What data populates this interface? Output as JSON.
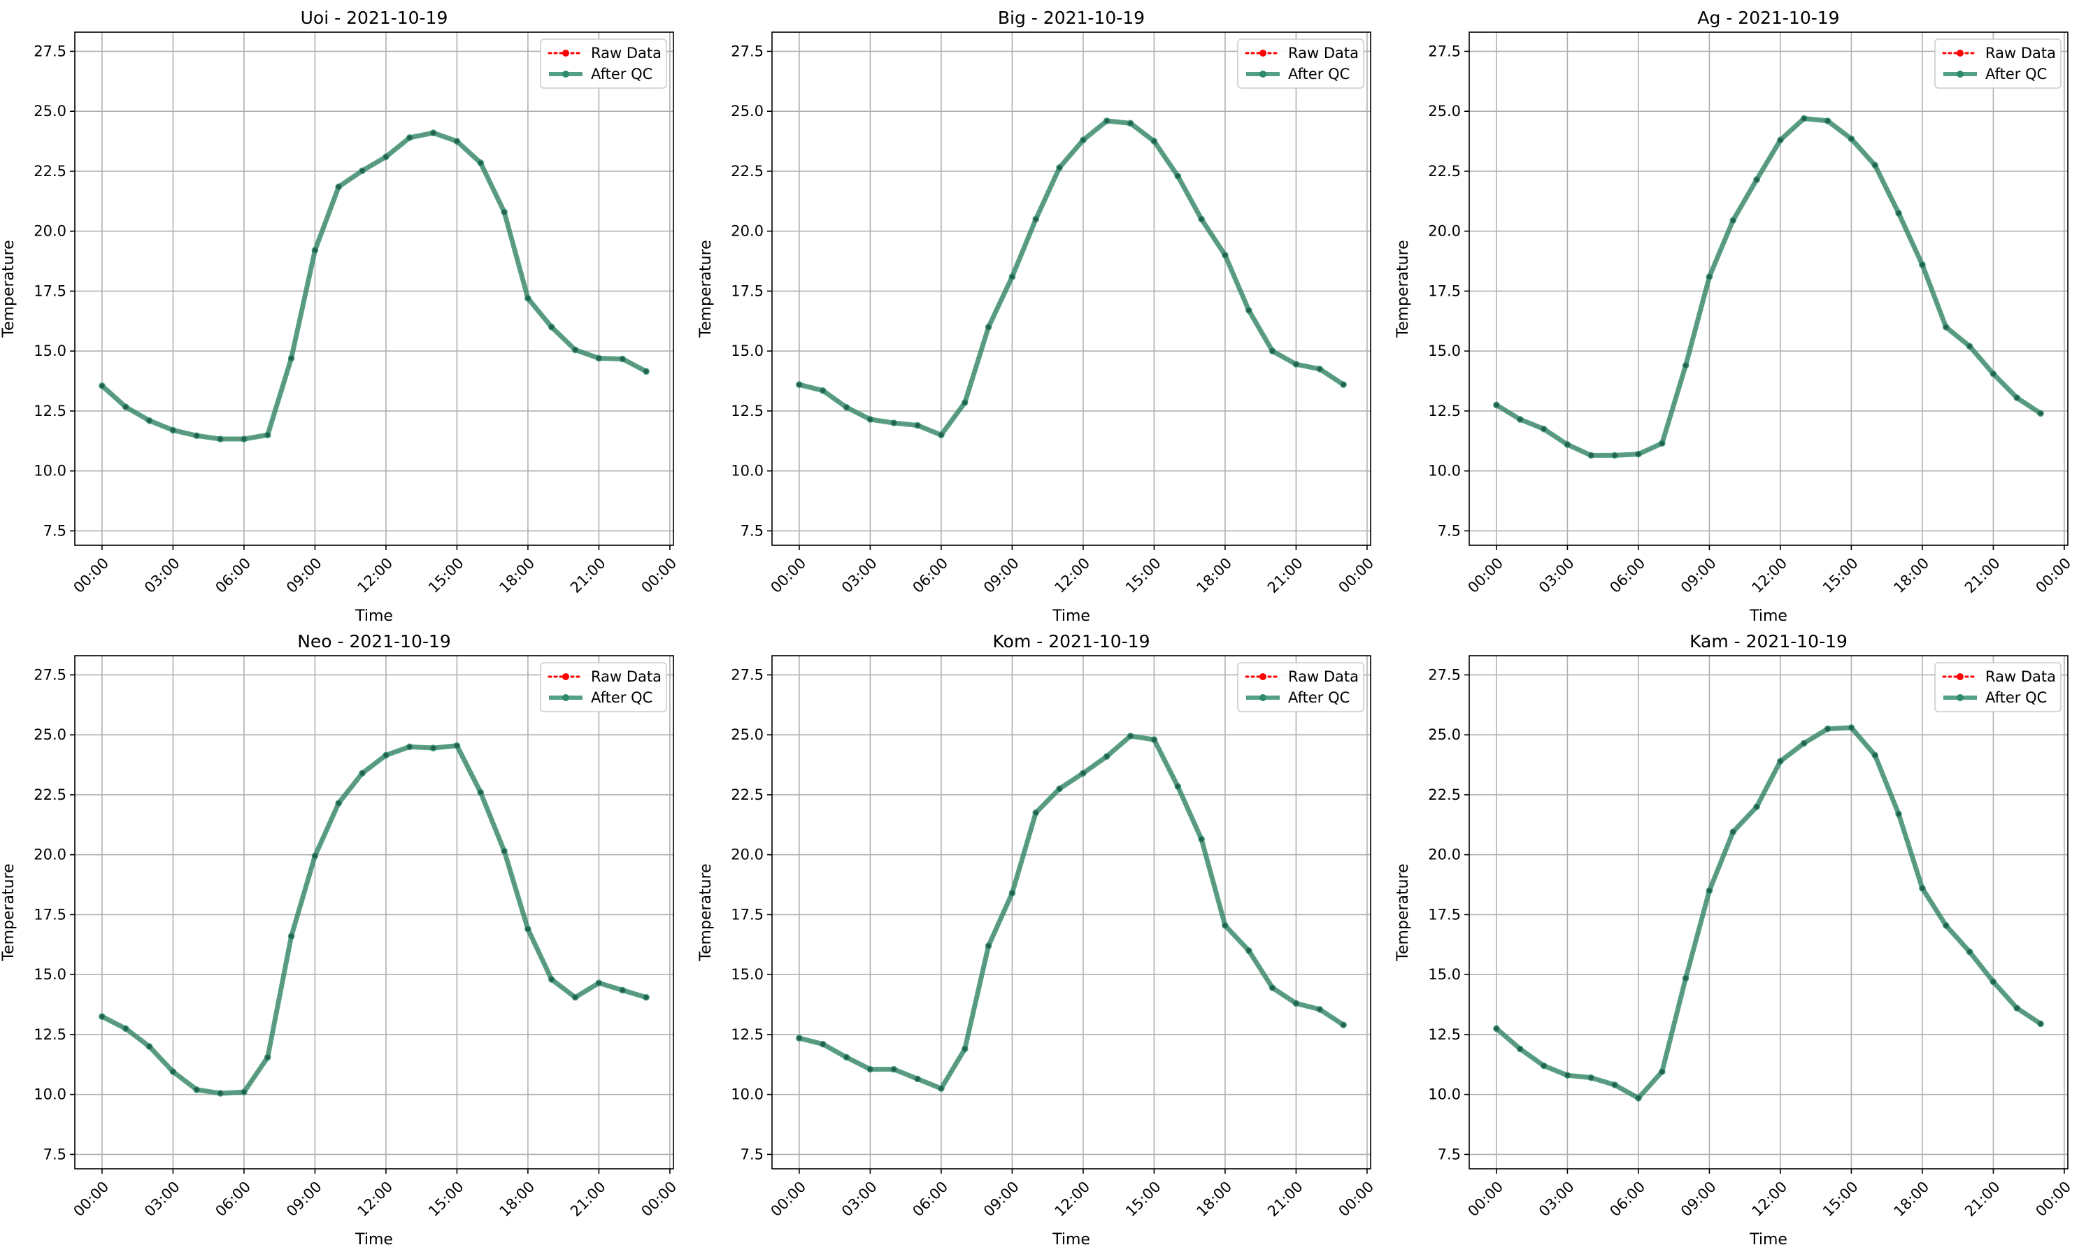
{
  "chart_data": [
    {
      "type": "line",
      "title": "Uoi - 2021-10-19",
      "xlabel": "Time",
      "ylabel": "Temperature",
      "xlim": [
        -1.15,
        24.15
      ],
      "ylim": [
        6.9,
        28.3
      ],
      "xticks": [
        0,
        3,
        6,
        9,
        12,
        15,
        18,
        21,
        24
      ],
      "xtick_labels": [
        "00:00",
        "03:00",
        "06:00",
        "09:00",
        "12:00",
        "15:00",
        "18:00",
        "21:00",
        "00:00"
      ],
      "yticks": [
        7.5,
        10.0,
        12.5,
        15.0,
        17.5,
        20.0,
        22.5,
        25.0,
        27.5
      ],
      "ytick_labels": [
        "7.5",
        "10.0",
        "12.5",
        "15.0",
        "17.5",
        "20.0",
        "22.5",
        "25.0",
        "27.5"
      ],
      "grid": true,
      "legend_position": "top-right",
      "x": [
        0,
        1,
        2,
        3,
        4,
        5,
        6,
        7,
        8,
        9,
        10,
        11,
        12,
        13,
        14,
        15,
        16,
        17,
        18,
        19,
        20,
        21,
        22,
        23
      ],
      "series": [
        {
          "name": "Raw Data",
          "color": "#ff0000",
          "values": [
            13.55,
            12.67,
            12.1,
            11.7,
            11.47,
            11.33,
            11.33,
            11.5,
            14.7,
            19.2,
            21.85,
            22.52,
            23.1,
            23.9,
            24.1,
            23.75,
            22.85,
            20.8,
            17.2,
            16.0,
            15.05,
            14.7,
            14.67,
            14.15
          ]
        },
        {
          "name": "After QC",
          "color": "#2e8b6a",
          "values": [
            13.55,
            12.67,
            12.1,
            11.7,
            11.47,
            11.33,
            11.33,
            11.5,
            14.7,
            19.2,
            21.85,
            22.52,
            23.1,
            23.9,
            24.1,
            23.75,
            22.85,
            20.8,
            17.2,
            16.0,
            15.05,
            14.7,
            14.67,
            14.15
          ]
        }
      ]
    },
    {
      "type": "line",
      "title": "Big - 2021-10-19",
      "xlabel": "Time",
      "ylabel": "Temperature",
      "xlim": [
        -1.15,
        24.15
      ],
      "ylim": [
        6.9,
        28.3
      ],
      "xticks": [
        0,
        3,
        6,
        9,
        12,
        15,
        18,
        21,
        24
      ],
      "xtick_labels": [
        "00:00",
        "03:00",
        "06:00",
        "09:00",
        "12:00",
        "15:00",
        "18:00",
        "21:00",
        "00:00"
      ],
      "yticks": [
        7.5,
        10.0,
        12.5,
        15.0,
        17.5,
        20.0,
        22.5,
        25.0,
        27.5
      ],
      "ytick_labels": [
        "7.5",
        "10.0",
        "12.5",
        "15.0",
        "17.5",
        "20.0",
        "22.5",
        "25.0",
        "27.5"
      ],
      "grid": true,
      "legend_position": "top-right",
      "x": [
        0,
        1,
        2,
        3,
        4,
        5,
        6,
        7,
        8,
        9,
        10,
        11,
        12,
        13,
        14,
        15,
        16,
        17,
        18,
        19,
        20,
        21,
        22,
        23
      ],
      "series": [
        {
          "name": "Raw Data",
          "color": "#ff0000",
          "values": [
            13.6,
            13.35,
            12.65,
            12.15,
            12.0,
            11.9,
            11.5,
            12.85,
            16.0,
            18.1,
            20.5,
            22.65,
            23.8,
            24.6,
            24.5,
            23.75,
            22.3,
            20.5,
            19.0,
            16.7,
            15.0,
            14.45,
            14.25,
            13.6
          ]
        },
        {
          "name": "After QC",
          "color": "#2e8b6a",
          "values": [
            13.6,
            13.35,
            12.65,
            12.15,
            12.0,
            11.9,
            11.5,
            12.85,
            16.0,
            18.1,
            20.5,
            22.65,
            23.8,
            24.6,
            24.5,
            23.75,
            22.3,
            20.5,
            19.0,
            16.7,
            15.0,
            14.45,
            14.25,
            13.6
          ]
        }
      ]
    },
    {
      "type": "line",
      "title": "Ag - 2021-10-19",
      "xlabel": "Time",
      "ylabel": "Temperature",
      "xlim": [
        -1.15,
        24.15
      ],
      "ylim": [
        6.9,
        28.3
      ],
      "xticks": [
        0,
        3,
        6,
        9,
        12,
        15,
        18,
        21,
        24
      ],
      "xtick_labels": [
        "00:00",
        "03:00",
        "06:00",
        "09:00",
        "12:00",
        "15:00",
        "18:00",
        "21:00",
        "00:00"
      ],
      "yticks": [
        7.5,
        10.0,
        12.5,
        15.0,
        17.5,
        20.0,
        22.5,
        25.0,
        27.5
      ],
      "ytick_labels": [
        "7.5",
        "10.0",
        "12.5",
        "15.0",
        "17.5",
        "20.0",
        "22.5",
        "25.0",
        "27.5"
      ],
      "grid": true,
      "legend_position": "top-right",
      "x": [
        0,
        1,
        2,
        3,
        4,
        5,
        6,
        7,
        8,
        9,
        10,
        11,
        12,
        13,
        14,
        15,
        16,
        17,
        18,
        19,
        20,
        21,
        22,
        23
      ],
      "series": [
        {
          "name": "Raw Data",
          "color": "#ff0000",
          "values": [
            12.75,
            12.15,
            11.75,
            11.1,
            10.65,
            10.65,
            10.7,
            11.15,
            14.4,
            18.1,
            20.45,
            22.15,
            23.8,
            24.7,
            24.6,
            23.85,
            22.75,
            20.75,
            18.6,
            16.0,
            15.2,
            14.05,
            13.05,
            12.4
          ]
        },
        {
          "name": "After QC",
          "color": "#2e8b6a",
          "values": [
            12.75,
            12.15,
            11.75,
            11.1,
            10.65,
            10.65,
            10.7,
            11.15,
            14.4,
            18.1,
            20.45,
            22.15,
            23.8,
            24.7,
            24.6,
            23.85,
            22.75,
            20.75,
            18.6,
            16.0,
            15.2,
            14.05,
            13.05,
            12.4
          ]
        }
      ]
    },
    {
      "type": "line",
      "title": "Neo - 2021-10-19",
      "xlabel": "Time",
      "ylabel": "Temperature",
      "xlim": [
        -1.15,
        24.15
      ],
      "ylim": [
        6.9,
        28.3
      ],
      "xticks": [
        0,
        3,
        6,
        9,
        12,
        15,
        18,
        21,
        24
      ],
      "xtick_labels": [
        "00:00",
        "03:00",
        "06:00",
        "09:00",
        "12:00",
        "15:00",
        "18:00",
        "21:00",
        "00:00"
      ],
      "yticks": [
        7.5,
        10.0,
        12.5,
        15.0,
        17.5,
        20.0,
        22.5,
        25.0,
        27.5
      ],
      "ytick_labels": [
        "7.5",
        "10.0",
        "12.5",
        "15.0",
        "17.5",
        "20.0",
        "22.5",
        "25.0",
        "27.5"
      ],
      "grid": true,
      "legend_position": "top-right",
      "x": [
        0,
        1,
        2,
        3,
        4,
        5,
        6,
        7,
        8,
        9,
        10,
        11,
        12,
        13,
        14,
        15,
        16,
        17,
        18,
        19,
        20,
        21,
        22,
        23
      ],
      "series": [
        {
          "name": "Raw Data",
          "color": "#ff0000",
          "values": [
            13.25,
            12.75,
            12.0,
            10.95,
            10.2,
            10.05,
            10.1,
            11.55,
            16.6,
            19.95,
            22.15,
            23.4,
            24.15,
            24.5,
            24.45,
            24.55,
            22.6,
            20.15,
            16.9,
            14.8,
            14.05,
            14.65,
            14.35,
            14.05
          ]
        },
        {
          "name": "After QC",
          "color": "#2e8b6a",
          "values": [
            13.25,
            12.75,
            12.0,
            10.95,
            10.2,
            10.05,
            10.1,
            11.55,
            16.6,
            19.95,
            22.15,
            23.4,
            24.15,
            24.5,
            24.45,
            24.55,
            22.6,
            20.15,
            16.9,
            14.8,
            14.05,
            14.65,
            14.35,
            14.05
          ]
        }
      ]
    },
    {
      "type": "line",
      "title": "Kom - 2021-10-19",
      "xlabel": "Time",
      "ylabel": "Temperature",
      "xlim": [
        -1.15,
        24.15
      ],
      "ylim": [
        6.9,
        28.3
      ],
      "xticks": [
        0,
        3,
        6,
        9,
        12,
        15,
        18,
        21,
        24
      ],
      "xtick_labels": [
        "00:00",
        "03:00",
        "06:00",
        "09:00",
        "12:00",
        "15:00",
        "18:00",
        "21:00",
        "00:00"
      ],
      "yticks": [
        7.5,
        10.0,
        12.5,
        15.0,
        17.5,
        20.0,
        22.5,
        25.0,
        27.5
      ],
      "ytick_labels": [
        "7.5",
        "10.0",
        "12.5",
        "15.0",
        "17.5",
        "20.0",
        "22.5",
        "25.0",
        "27.5"
      ],
      "grid": true,
      "legend_position": "top-right",
      "x": [
        0,
        1,
        2,
        3,
        4,
        5,
        6,
        7,
        8,
        9,
        10,
        11,
        12,
        13,
        14,
        15,
        16,
        17,
        18,
        19,
        20,
        21,
        22,
        23
      ],
      "series": [
        {
          "name": "Raw Data",
          "color": "#ff0000",
          "values": [
            12.35,
            12.1,
            11.55,
            11.05,
            11.05,
            10.65,
            10.25,
            11.9,
            16.2,
            18.4,
            21.75,
            22.75,
            23.4,
            24.1,
            24.95,
            24.8,
            22.85,
            20.65,
            17.05,
            16.0,
            14.45,
            13.8,
            13.55,
            12.9
          ]
        },
        {
          "name": "After QC",
          "color": "#2e8b6a",
          "values": [
            12.35,
            12.1,
            11.55,
            11.05,
            11.05,
            10.65,
            10.25,
            11.9,
            16.2,
            18.4,
            21.75,
            22.75,
            23.4,
            24.1,
            24.95,
            24.8,
            22.85,
            20.65,
            17.05,
            16.0,
            14.45,
            13.8,
            13.55,
            12.9
          ]
        }
      ]
    },
    {
      "type": "line",
      "title": "Kam - 2021-10-19",
      "xlabel": "Time",
      "ylabel": "Temperature",
      "xlim": [
        -1.15,
        24.15
      ],
      "ylim": [
        6.9,
        28.3
      ],
      "xticks": [
        0,
        3,
        6,
        9,
        12,
        15,
        18,
        21,
        24
      ],
      "xtick_labels": [
        "00:00",
        "03:00",
        "06:00",
        "09:00",
        "12:00",
        "15:00",
        "18:00",
        "21:00",
        "00:00"
      ],
      "yticks": [
        7.5,
        10.0,
        12.5,
        15.0,
        17.5,
        20.0,
        22.5,
        25.0,
        27.5
      ],
      "ytick_labels": [
        "7.5",
        "10.0",
        "12.5",
        "15.0",
        "17.5",
        "20.0",
        "22.5",
        "25.0",
        "27.5"
      ],
      "grid": true,
      "legend_position": "top-right",
      "x": [
        0,
        1,
        2,
        3,
        4,
        5,
        6,
        7,
        8,
        9,
        10,
        11,
        12,
        13,
        14,
        15,
        16,
        17,
        18,
        19,
        20,
        21,
        22,
        23
      ],
      "series": [
        {
          "name": "Raw Data",
          "color": "#ff0000",
          "values": [
            12.75,
            11.9,
            11.2,
            10.8,
            10.7,
            10.4,
            9.85,
            10.95,
            14.85,
            18.5,
            20.95,
            22.0,
            23.9,
            24.65,
            25.25,
            25.3,
            24.15,
            21.7,
            18.6,
            17.05,
            15.95,
            14.7,
            13.6,
            12.95
          ]
        },
        {
          "name": "After QC",
          "color": "#2e8b6a",
          "values": [
            12.75,
            11.9,
            11.2,
            10.8,
            10.7,
            10.4,
            9.85,
            10.95,
            14.85,
            18.5,
            20.95,
            22.0,
            23.9,
            24.65,
            25.25,
            25.3,
            24.15,
            21.7,
            18.6,
            17.05,
            15.95,
            14.7,
            13.6,
            12.95
          ]
        }
      ]
    }
  ]
}
